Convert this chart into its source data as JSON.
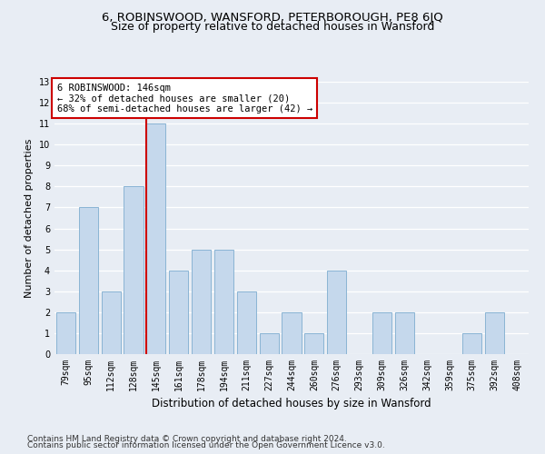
{
  "title1": "6, ROBINSWOOD, WANSFORD, PETERBOROUGH, PE8 6JQ",
  "title2": "Size of property relative to detached houses in Wansford",
  "xlabel": "Distribution of detached houses by size in Wansford",
  "ylabel": "Number of detached properties",
  "categories": [
    "79sqm",
    "95sqm",
    "112sqm",
    "128sqm",
    "145sqm",
    "161sqm",
    "178sqm",
    "194sqm",
    "211sqm",
    "227sqm",
    "244sqm",
    "260sqm",
    "276sqm",
    "293sqm",
    "309sqm",
    "326sqm",
    "342sqm",
    "359sqm",
    "375sqm",
    "392sqm",
    "408sqm"
  ],
  "values": [
    2,
    7,
    3,
    8,
    11,
    4,
    5,
    5,
    3,
    1,
    2,
    1,
    4,
    0,
    2,
    2,
    0,
    0,
    1,
    2,
    0
  ],
  "bar_color": "#c5d8ec",
  "bar_edge_color": "#8ab4d4",
  "vline_index": 4,
  "vline_color": "#cc0000",
  "annotation_text": "6 ROBINSWOOD: 146sqm\n← 32% of detached houses are smaller (20)\n68% of semi-detached houses are larger (42) →",
  "annotation_box_facecolor": "#ffffff",
  "annotation_box_edgecolor": "#cc0000",
  "ylim": [
    0,
    13
  ],
  "yticks": [
    0,
    1,
    2,
    3,
    4,
    5,
    6,
    7,
    8,
    9,
    10,
    11,
    12,
    13
  ],
  "bg_color": "#e8edf4",
  "grid_color": "#ffffff",
  "footer1": "Contains HM Land Registry data © Crown copyright and database right 2024.",
  "footer2": "Contains public sector information licensed under the Open Government Licence v3.0.",
  "title1_fontsize": 9.5,
  "title2_fontsize": 9,
  "axis_label_fontsize": 8,
  "tick_fontsize": 7,
  "annotation_fontsize": 7.5,
  "footer_fontsize": 6.5
}
